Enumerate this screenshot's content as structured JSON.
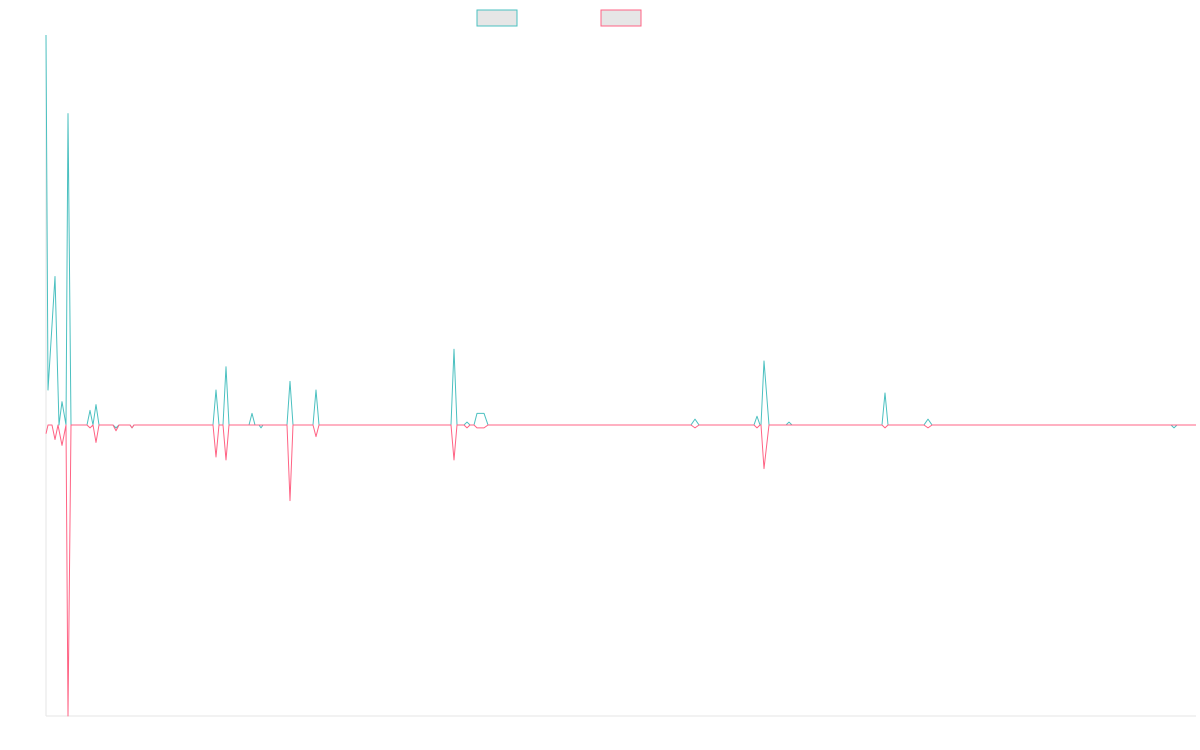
{
  "chart_data": {
    "type": "line",
    "title": "",
    "xlabel": "",
    "ylabel": "",
    "legend": {
      "position": "top-center"
    },
    "grid": false,
    "x_range": [
      0,
      1150
    ],
    "ylim": [
      -100,
      134
    ],
    "series": [
      {
        "name": "",
        "color": "#4bc0c0",
        "fill": "#e6e6e6",
        "points": [
          [
            0,
            134
          ],
          [
            2,
            12
          ],
          [
            9,
            51
          ],
          [
            13,
            0
          ],
          [
            16,
            8
          ],
          [
            20,
            0
          ],
          [
            22,
            107
          ],
          [
            25,
            0
          ],
          [
            41,
            0
          ],
          [
            44,
            5
          ],
          [
            47,
            0
          ],
          [
            50,
            7
          ],
          [
            53,
            0
          ],
          [
            67,
            0
          ],
          [
            70,
            -1
          ],
          [
            73,
            0
          ],
          [
            84,
            0
          ],
          [
            86,
            -1
          ],
          [
            88,
            0
          ],
          [
            167,
            0
          ],
          [
            170,
            12
          ],
          [
            173,
            0
          ],
          [
            177,
            0
          ],
          [
            180,
            20
          ],
          [
            183,
            0
          ],
          [
            187,
            0
          ],
          [
            203,
            0
          ],
          [
            206,
            4
          ],
          [
            209,
            0
          ],
          [
            213,
            0
          ],
          [
            215,
            -1
          ],
          [
            217,
            0
          ],
          [
            241,
            0
          ],
          [
            244,
            15
          ],
          [
            247,
            0
          ],
          [
            267,
            0
          ],
          [
            270,
            12
          ],
          [
            273,
            0
          ],
          [
            405,
            0
          ],
          [
            408,
            26
          ],
          [
            411,
            0
          ],
          [
            418,
            0
          ],
          [
            421,
            1
          ],
          [
            424,
            0
          ],
          [
            428,
            0
          ],
          [
            431,
            4
          ],
          [
            438,
            4
          ],
          [
            442,
            0
          ],
          [
            645,
            0
          ],
          [
            649,
            2
          ],
          [
            653,
            0
          ],
          [
            708,
            0
          ],
          [
            711,
            3
          ],
          [
            714,
            0
          ],
          [
            715,
            0
          ],
          [
            718,
            22
          ],
          [
            723,
            0
          ],
          [
            740,
            0
          ],
          [
            743,
            1
          ],
          [
            746,
            0
          ],
          [
            836,
            0
          ],
          [
            839,
            11
          ],
          [
            842,
            0
          ],
          [
            878,
            0
          ],
          [
            882,
            2
          ],
          [
            886,
            0
          ],
          [
            1125,
            0
          ],
          [
            1128,
            -1
          ],
          [
            1131,
            0
          ],
          [
            1150,
            0
          ]
        ]
      },
      {
        "name": "",
        "color": "#ff6384",
        "fill": "#e6e6e6",
        "points": [
          [
            0,
            -3
          ],
          [
            2,
            0
          ],
          [
            6,
            0
          ],
          [
            9,
            -5
          ],
          [
            12,
            0
          ],
          [
            16,
            -7
          ],
          [
            20,
            0
          ],
          [
            22,
            -100
          ],
          [
            25,
            0
          ],
          [
            41,
            0
          ],
          [
            44,
            -1
          ],
          [
            47,
            0
          ],
          [
            50,
            -6
          ],
          [
            53,
            0
          ],
          [
            67,
            0
          ],
          [
            70,
            -2
          ],
          [
            73,
            0
          ],
          [
            84,
            0
          ],
          [
            86,
            -1
          ],
          [
            88,
            0
          ],
          [
            167,
            0
          ],
          [
            170,
            -11
          ],
          [
            173,
            0
          ],
          [
            177,
            0
          ],
          [
            180,
            -12
          ],
          [
            183,
            0
          ],
          [
            187,
            0
          ],
          [
            241,
            0
          ],
          [
            244,
            -26
          ],
          [
            247,
            0
          ],
          [
            267,
            0
          ],
          [
            270,
            -4
          ],
          [
            273,
            0
          ],
          [
            405,
            0
          ],
          [
            408,
            -12
          ],
          [
            411,
            0
          ],
          [
            418,
            0
          ],
          [
            421,
            -1
          ],
          [
            424,
            0
          ],
          [
            428,
            0
          ],
          [
            431,
            -1
          ],
          [
            438,
            -1
          ],
          [
            442,
            0
          ],
          [
            645,
            0
          ],
          [
            649,
            -1
          ],
          [
            653,
            0
          ],
          [
            708,
            0
          ],
          [
            711,
            -1
          ],
          [
            714,
            0
          ],
          [
            715,
            0
          ],
          [
            718,
            -15
          ],
          [
            723,
            0
          ],
          [
            836,
            0
          ],
          [
            839,
            -1
          ],
          [
            842,
            0
          ],
          [
            878,
            0
          ],
          [
            882,
            -1
          ],
          [
            886,
            0
          ],
          [
            1150,
            0
          ]
        ]
      }
    ]
  }
}
